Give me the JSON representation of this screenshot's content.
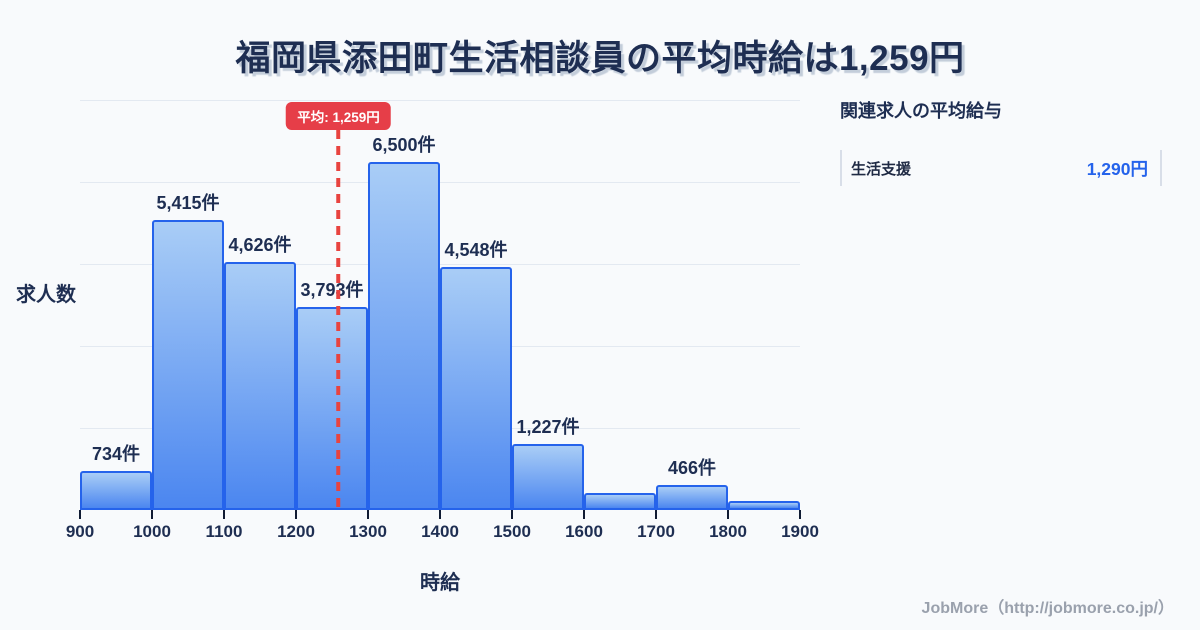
{
  "title": "福岡県添田町生活相談員の平均時給は1,259円",
  "chart_data": {
    "type": "bar",
    "title": "福岡県添田町生活相談員の平均時給は1,259円",
    "xlabel": "時給",
    "ylabel": "求人数",
    "x_range": [
      900,
      1900
    ],
    "bin_width": 100,
    "x_ticks": [
      "900",
      "1000",
      "1100",
      "1200",
      "1300",
      "1400",
      "1500",
      "1600",
      "1700",
      "1800",
      "1900"
    ],
    "values": [
      734,
      5415,
      4626,
      3793,
      6500,
      4548,
      1227,
      320,
      466,
      170
    ],
    "bar_labels": [
      "734件",
      "5,415件",
      "4,626件",
      "3,793件",
      "6,500件",
      "4,548件",
      "1,227件",
      "",
      "466件",
      ""
    ],
    "unlabeled_values_estimated": true,
    "ylim": [
      0,
      7660
    ],
    "grid": "horizontal",
    "gridline_count": 5,
    "average_line": {
      "value": 1259,
      "label": "平均: 1,259円"
    }
  },
  "side_panel": {
    "title": "関連求人の平均給与",
    "items": [
      {
        "label": "生活支援",
        "value": "1,290円"
      }
    ]
  },
  "footer": {
    "credit": "JobMore（http://jobmore.co.jp/）"
  },
  "colors": {
    "background": "#f8fafc",
    "title_navy": "#1e2e52",
    "bar_gradient_top": "#a9cdf6",
    "bar_gradient_bottom": "#4b86f0",
    "bar_border": "#2563eb",
    "average_red": "#e8433f",
    "badge_red": "#e63e48",
    "value_accent": "#2563eb",
    "gridline": "#e3e9f1"
  }
}
